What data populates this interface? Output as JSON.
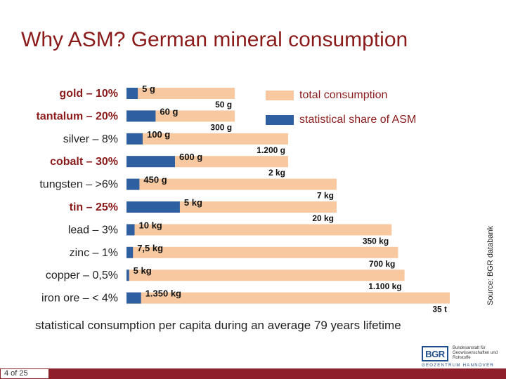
{
  "title": "Why ASM? German mineral consumption",
  "legend": [
    {
      "label": "total consumption",
      "color": "#f8c9a0"
    },
    {
      "label": "statistical share of ASM",
      "color": "#2e5fa1"
    }
  ],
  "caption": "statistical consumption per capita during an average 79 years lifetime",
  "source": "Source: BGR databank",
  "page_number": "4 of 25",
  "logo": {
    "mark": "BGR",
    "text": "Bundesanstalt für Geowissenschaften und Rohstoffe",
    "subtitle": "GEOZENTRUM HANNOVER"
  },
  "chart_data": {
    "type": "bar",
    "orientation": "horizontal",
    "categories": [
      "gold – 10%",
      "tantalum – 20%",
      "silver – 8%",
      "cobalt – 30%",
      "tungsten – >6%",
      "tin – 25%",
      "lead – 3%",
      "zinc – 1%",
      "copper – 0,5%",
      "iron ore – < 4%"
    ],
    "series": [
      {
        "name": "total consumption",
        "bar_fraction": [
          0.335,
          0.335,
          0.5,
          0.5,
          0.65,
          0.65,
          0.82,
          0.84,
          0.86,
          1.0
        ],
        "labels": [
          "50 g",
          "300 g",
          "1.200 g",
          "2 kg",
          "7 kg",
          "20 kg",
          "350 kg",
          "700 kg",
          "1.100 kg",
          "35 t"
        ]
      },
      {
        "name": "statistical share of ASM",
        "bar_fraction": [
          0.035,
          0.09,
          0.05,
          0.15,
          0.04,
          0.165,
          0.025,
          0.02,
          0.008,
          0.045
        ],
        "labels": [
          "5 g",
          "60 g",
          "100 g",
          "600 g",
          "450 g",
          "5 kg",
          "10 kg",
          "7,5 kg",
          "5 kg",
          "1.350 kg"
        ]
      }
    ],
    "bold_categories": [
      "gold – 10%",
      "tantalum – 20%",
      "cobalt – 30%",
      "tin – 25%"
    ]
  }
}
